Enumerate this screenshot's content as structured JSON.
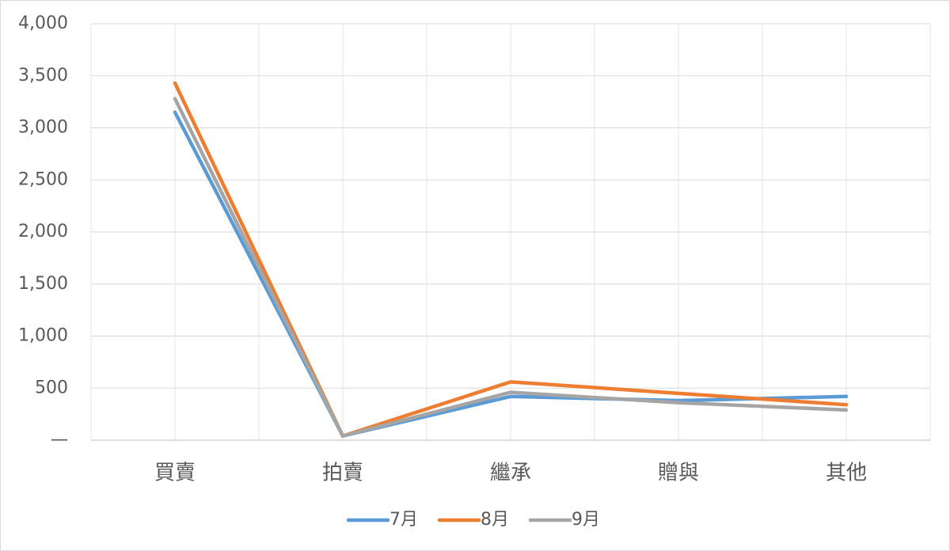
{
  "chart_data": {
    "type": "line",
    "categories": [
      "買賣",
      "拍賣",
      "繼承",
      "贈與",
      "其他"
    ],
    "series": [
      {
        "name": "7月",
        "color": "#5b9bd5",
        "values": [
          3150,
          40,
          420,
          380,
          420
        ]
      },
      {
        "name": "8月",
        "color": "#ed7d31",
        "values": [
          3430,
          40,
          560,
          450,
          340
        ]
      },
      {
        "name": "9月",
        "color": "#a5a5a5",
        "values": [
          3280,
          40,
          460,
          360,
          290
        ]
      }
    ],
    "ylim": [
      0,
      4000
    ],
    "yticks": [
      {
        "value": 0,
        "label": "—"
      },
      {
        "value": 500,
        "label": "500"
      },
      {
        "value": 1000,
        "label": "1,000"
      },
      {
        "value": 1500,
        "label": "1,500"
      },
      {
        "value": 2000,
        "label": "2,000"
      },
      {
        "value": 2500,
        "label": "2,500"
      },
      {
        "value": 3000,
        "label": "3,000"
      },
      {
        "value": 3500,
        "label": "3,500"
      },
      {
        "value": 4000,
        "label": "4,000"
      }
    ],
    "grid": true,
    "legend": "bottom"
  }
}
